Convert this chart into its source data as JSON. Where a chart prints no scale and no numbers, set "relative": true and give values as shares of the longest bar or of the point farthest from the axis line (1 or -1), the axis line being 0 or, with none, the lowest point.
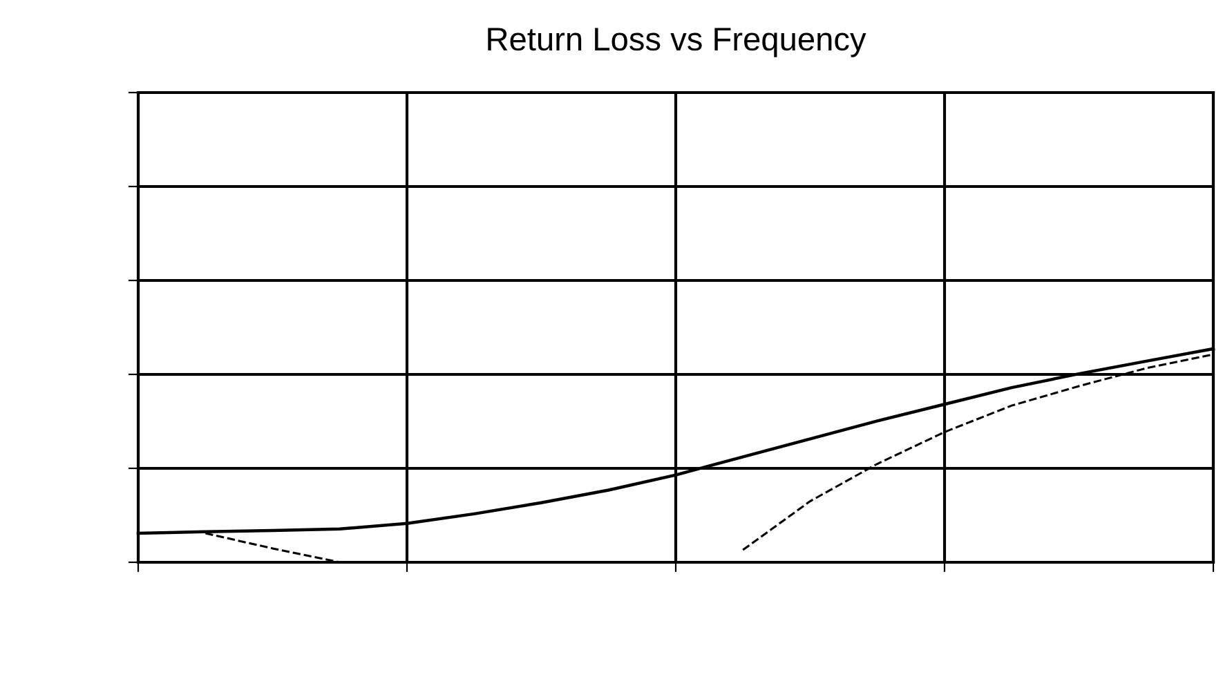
{
  "chart_data": {
    "type": "line",
    "title": "Return Loss vs Frequency",
    "relative": true,
    "grid": true,
    "marker": "none",
    "categories": [
      null,
      null,
      null,
      null,
      null,
      null,
      null,
      null,
      null,
      null,
      null,
      null,
      null,
      null,
      null,
      null,
      null
    ],
    "series": [
      {
        "color": "#000000",
        "line_style": "solid",
        "values": [
          0.136,
          0.143,
          0.149,
          0.156,
          0.182,
          0.227,
          0.279,
          0.338,
          0.409,
          0.494,
          0.578,
          0.662,
          0.74,
          0.818,
          0.883,
          0.942,
          1.0
        ]
      },
      {
        "color": "#000000",
        "line_style": "dashed",
        "values": [
          null,
          0.136,
          0.065,
          0.0,
          null,
          null,
          null,
          null,
          null,
          0.058,
          0.286,
          0.461,
          0.61,
          0.734,
          0.825,
          0.909,
          0.974
        ]
      }
    ]
  }
}
